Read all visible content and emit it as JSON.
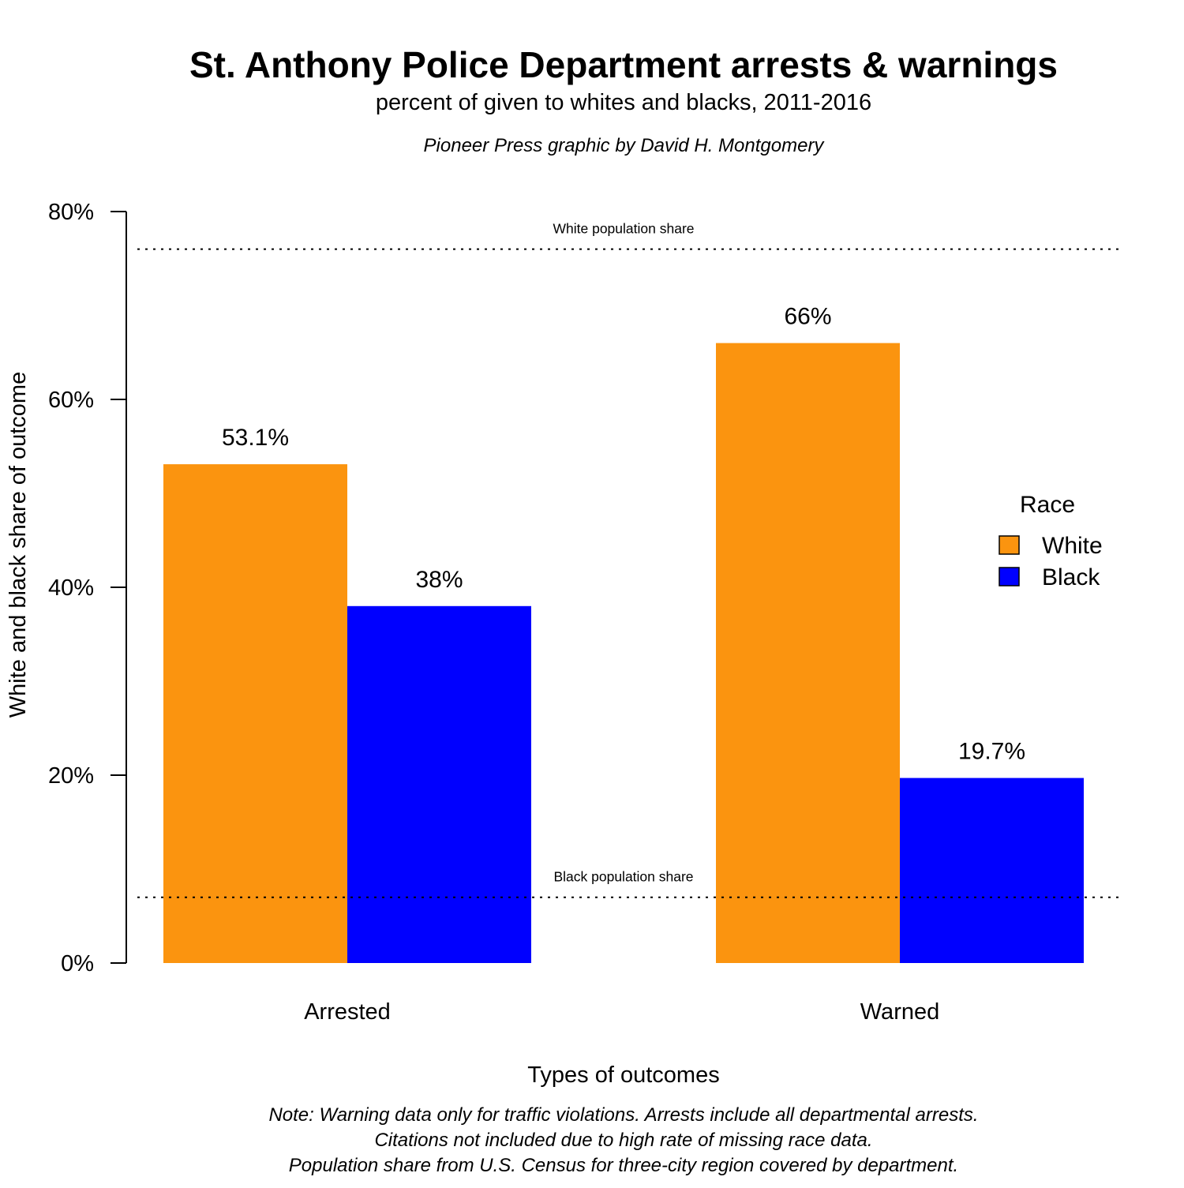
{
  "chart_data": {
    "type": "bar",
    "title": "St. Anthony Police Department arrests & warnings",
    "subtitle": "percent of given to whites and blacks, 2011-2016",
    "credit": "Pioneer Press graphic by David H. Montgomery",
    "xlabel": "Types of outcomes",
    "ylabel": "White and black share of outcome",
    "categories": [
      "Arrested",
      "Warned"
    ],
    "series": [
      {
        "name": "White",
        "color": "#fb940f",
        "values": [
          53.1,
          66
        ],
        "labels": [
          "53.1%",
          "66%"
        ]
      },
      {
        "name": "Black",
        "color": "#0000ff",
        "values": [
          38,
          19.7
        ],
        "labels": [
          "38%",
          "19.7%"
        ]
      }
    ],
    "ylim": [
      0,
      80
    ],
    "yticks": [
      0,
      20,
      40,
      60,
      80
    ],
    "ytick_labels": [
      "0%",
      "20%",
      "40%",
      "60%",
      "80%"
    ],
    "reference_lines": [
      {
        "label": "White population share",
        "value": 76,
        "style": "dotted"
      },
      {
        "label": "Black population share",
        "value": 7,
        "style": "dotted"
      }
    ],
    "legend": {
      "title": "Race",
      "position": "right",
      "entries": [
        "White",
        "Black"
      ]
    },
    "grid": false,
    "notes": [
      "Note: Warning data only for traffic violations. Arrests include all departmental arrests.",
      "Citations not included due to high rate of missing race data.",
      "Population share from U.S. Census for three-city region covered by department."
    ]
  }
}
